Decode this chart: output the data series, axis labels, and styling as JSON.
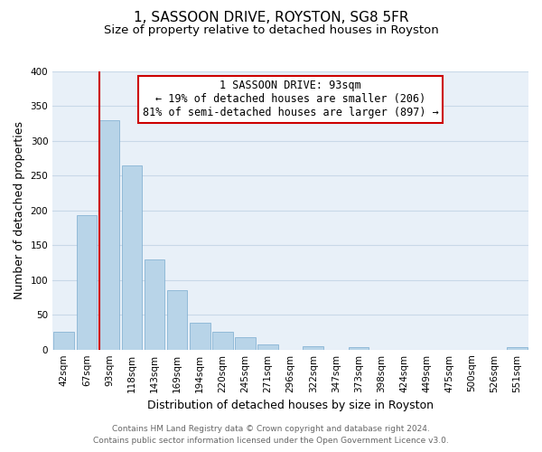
{
  "title": "1, SASSOON DRIVE, ROYSTON, SG8 5FR",
  "subtitle": "Size of property relative to detached houses in Royston",
  "xlabel": "Distribution of detached houses by size in Royston",
  "ylabel": "Number of detached properties",
  "bin_labels": [
    "42sqm",
    "67sqm",
    "93sqm",
    "118sqm",
    "143sqm",
    "169sqm",
    "194sqm",
    "220sqm",
    "245sqm",
    "271sqm",
    "296sqm",
    "322sqm",
    "347sqm",
    "373sqm",
    "398sqm",
    "424sqm",
    "449sqm",
    "475sqm",
    "500sqm",
    "526sqm",
    "551sqm"
  ],
  "bar_values": [
    25,
    193,
    330,
    265,
    130,
    86,
    38,
    26,
    18,
    8,
    0,
    5,
    0,
    3,
    0,
    0,
    0,
    0,
    0,
    0,
    3
  ],
  "bar_color": "#b8d4e8",
  "highlight_bar_index": 2,
  "highlight_color": "#cc0000",
  "ylim": [
    0,
    400
  ],
  "yticks": [
    0,
    50,
    100,
    150,
    200,
    250,
    300,
    350,
    400
  ],
  "annotation_title": "1 SASSOON DRIVE: 93sqm",
  "annotation_line1": "← 19% of detached houses are smaller (206)",
  "annotation_line2": "81% of semi-detached houses are larger (897) →",
  "annotation_box_color": "#ffffff",
  "annotation_box_edge": "#cc0000",
  "footer_line1": "Contains HM Land Registry data © Crown copyright and database right 2024.",
  "footer_line2": "Contains public sector information licensed under the Open Government Licence v3.0.",
  "background_color": "#ffffff",
  "plot_bg_color": "#e8f0f8",
  "grid_color": "#c8d8e8",
  "title_fontsize": 11,
  "subtitle_fontsize": 9.5,
  "axis_label_fontsize": 9,
  "tick_fontsize": 7.5,
  "annotation_fontsize": 8.5,
  "footer_fontsize": 6.5
}
